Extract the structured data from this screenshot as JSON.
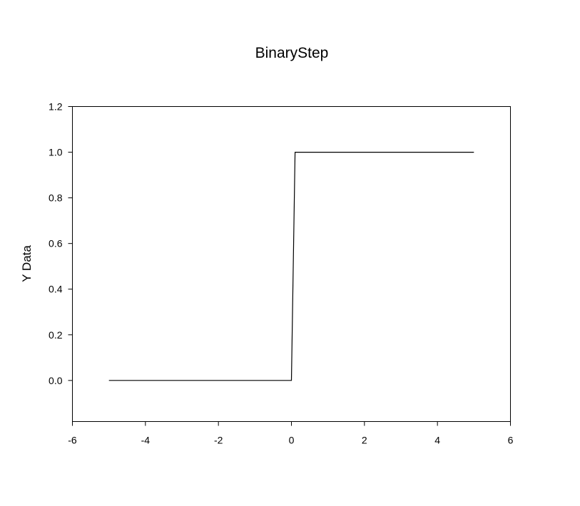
{
  "chart_data": {
    "type": "line",
    "title": "BinaryStep",
    "xlabel": "",
    "ylabel": "Y Data",
    "xlim": [
      -6,
      6
    ],
    "ylim": [
      -0.18,
      1.2
    ],
    "x_ticks": [
      -6,
      -4,
      -2,
      0,
      2,
      4,
      6
    ],
    "x_tick_labels": [
      "-6",
      "-4",
      "-2",
      "0",
      "2",
      "4",
      "6"
    ],
    "y_ticks": [
      0.0,
      0.2,
      0.4,
      0.6,
      0.8,
      1.0,
      1.2
    ],
    "y_tick_labels": [
      "0.0",
      "0.2",
      "0.4",
      "0.6",
      "0.8",
      "1.0",
      "1.2"
    ],
    "grid": false,
    "series": [
      {
        "color": "#000000",
        "x": [
          -5,
          0,
          0.1,
          5
        ],
        "y": [
          0,
          0,
          1,
          1
        ]
      }
    ]
  }
}
